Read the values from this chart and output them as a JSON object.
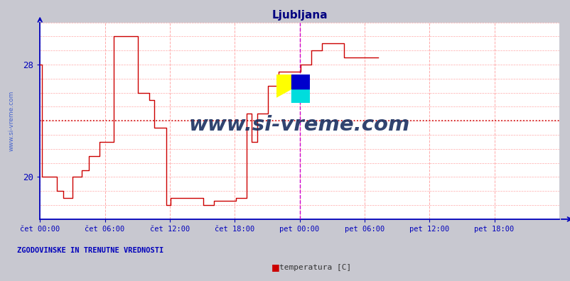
{
  "title": "Ljubljana",
  "title_color": "#000080",
  "fig_bg_color": "#c8c8d0",
  "plot_bg_color": "#ffffff",
  "line_color": "#cc0000",
  "grid_color": "#ffaaaa",
  "axis_color": "#0000bb",
  "watermark_text": "www.si-vreme.com",
  "watermark_color": "#1a3060",
  "left_label": "ZGODOVINSKE IN TRENUTNE VREDNOSTI",
  "legend_label": "temperatura [C]",
  "legend_color": "#cc0000",
  "tick_label_color": "#0000bb",
  "ylim": [
    17.0,
    31.0
  ],
  "yticks": [
    20,
    28
  ],
  "mean_line_y": 24.0,
  "mean_line_color": "#cc0000",
  "vline_color": "#cc00cc",
  "x_tick_labels": [
    "čet 00:00",
    "čet 06:00",
    "čet 12:00",
    "čet 18:00",
    "pet 00:00",
    "pet 06:00",
    "pet 12:00",
    "pet 18:00"
  ],
  "temperature_data": [
    [
      0,
      28.0
    ],
    [
      1,
      28.0
    ],
    [
      2,
      20.0
    ],
    [
      18,
      20.0
    ],
    [
      19,
      19.0
    ],
    [
      26,
      18.5
    ],
    [
      30,
      18.5
    ],
    [
      36,
      20.0
    ],
    [
      42,
      20.0
    ],
    [
      46,
      20.5
    ],
    [
      54,
      21.5
    ],
    [
      60,
      21.5
    ],
    [
      66,
      22.5
    ],
    [
      72,
      22.5
    ],
    [
      82,
      30.0
    ],
    [
      108,
      30.0
    ],
    [
      109,
      26.0
    ],
    [
      120,
      26.0
    ],
    [
      121,
      25.5
    ],
    [
      126,
      25.5
    ],
    [
      127,
      23.5
    ],
    [
      139,
      23.5
    ],
    [
      140,
      18.0
    ],
    [
      144,
      18.0
    ],
    [
      145,
      18.5
    ],
    [
      180,
      18.5
    ],
    [
      181,
      18.0
    ],
    [
      192,
      18.0
    ],
    [
      193,
      18.3
    ],
    [
      216,
      18.3
    ],
    [
      217,
      18.5
    ],
    [
      228,
      18.5
    ],
    [
      229,
      24.5
    ],
    [
      234,
      24.5
    ],
    [
      235,
      22.5
    ],
    [
      240,
      22.5
    ],
    [
      241,
      24.5
    ],
    [
      252,
      24.5
    ],
    [
      253,
      26.5
    ],
    [
      264,
      26.5
    ],
    [
      265,
      27.5
    ],
    [
      288,
      27.5
    ],
    [
      289,
      28.0
    ],
    [
      300,
      28.0
    ],
    [
      301,
      29.0
    ],
    [
      312,
      29.0
    ],
    [
      313,
      29.5
    ],
    [
      336,
      29.5
    ],
    [
      337,
      28.5
    ],
    [
      360,
      28.5
    ],
    [
      361,
      28.5
    ],
    [
      375,
      28.5
    ]
  ],
  "num_points": 576,
  "vline_x_index": 288
}
